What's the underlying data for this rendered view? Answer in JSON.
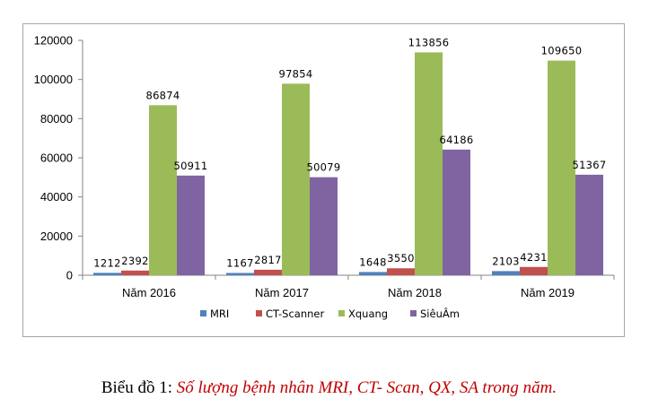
{
  "chart_data": {
    "type": "bar",
    "categories": [
      "Năm 2016",
      "Năm 2017",
      "Năm 2018",
      "Năm 2019"
    ],
    "series": [
      {
        "name": "MRI",
        "color": "#4f81bd",
        "values": [
          1212,
          1167,
          1648,
          2103
        ]
      },
      {
        "name": "CT-Scanner",
        "color": "#c0504d",
        "values": [
          2392,
          2817,
          3550,
          4231
        ]
      },
      {
        "name": "Xquang",
        "color": "#9bbb59",
        "values": [
          86874,
          97854,
          113856,
          109650
        ]
      },
      {
        "name": "SiêuÂm",
        "color": "#8064a2",
        "values": [
          50911,
          50079,
          64186,
          51367
        ]
      }
    ],
    "y_ticks": [
      "0",
      "20000",
      "40000",
      "60000",
      "80000",
      "100000",
      "120000"
    ],
    "ylim": [
      0,
      120000
    ],
    "data_labels": true,
    "grid": false,
    "legend_position": "bottom"
  },
  "caption": {
    "prefix": "Biểu đồ 1: ",
    "title": "Số lượng bệnh nhân MRI, CT- Scan, QX, SA trong năm."
  }
}
